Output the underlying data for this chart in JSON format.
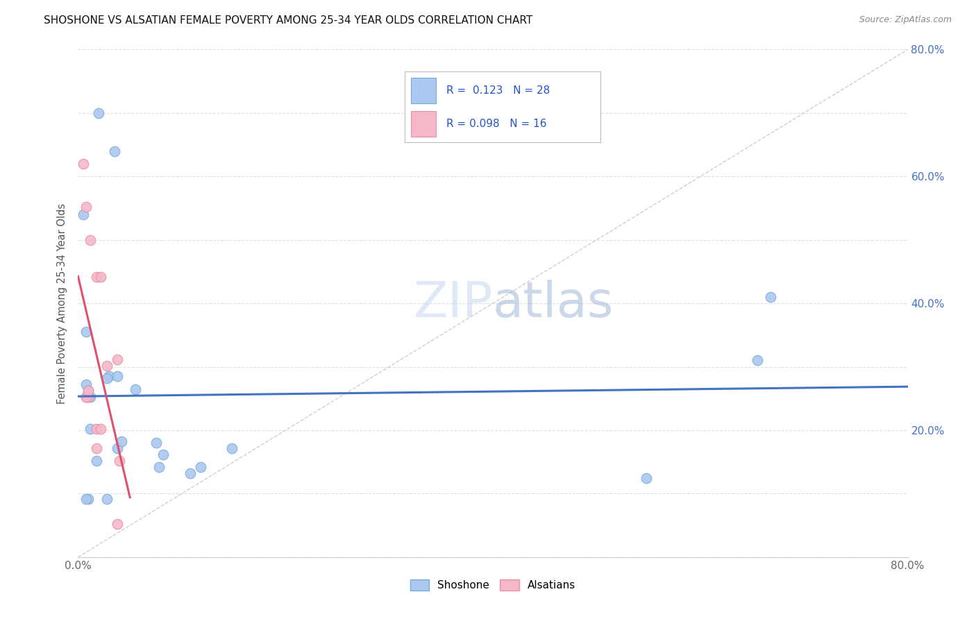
{
  "title": "SHOSHONE VS ALSATIAN FEMALE POVERTY AMONG 25-34 YEAR OLDS CORRELATION CHART",
  "source": "Source: ZipAtlas.com",
  "ylabel": "Female Poverty Among 25-34 Year Olds",
  "xlim": [
    0.0,
    0.8
  ],
  "ylim": [
    0.0,
    0.8
  ],
  "xticks": [
    0.0,
    0.1,
    0.2,
    0.3,
    0.4,
    0.5,
    0.6,
    0.7,
    0.8
  ],
  "yticks": [
    0.0,
    0.1,
    0.2,
    0.3,
    0.4,
    0.5,
    0.6,
    0.7,
    0.8
  ],
  "yticklabels_right": [
    "",
    "",
    "20.0%",
    "",
    "40.0%",
    "",
    "60.0%",
    "",
    "80.0%"
  ],
  "shoshone_x": [
    0.02,
    0.005,
    0.03,
    0.038,
    0.008,
    0.055,
    0.075,
    0.082,
    0.018,
    0.012,
    0.01,
    0.008,
    0.012,
    0.038,
    0.042,
    0.148,
    0.118,
    0.108,
    0.548,
    0.01,
    0.028,
    0.035,
    0.078,
    0.668,
    0.655,
    0.01,
    0.008,
    0.028
  ],
  "shoshone_y": [
    0.7,
    0.54,
    0.285,
    0.285,
    0.355,
    0.265,
    0.18,
    0.162,
    0.152,
    0.252,
    0.252,
    0.272,
    0.202,
    0.172,
    0.182,
    0.172,
    0.142,
    0.132,
    0.125,
    0.262,
    0.282,
    0.64,
    0.142,
    0.41,
    0.31,
    0.092,
    0.092,
    0.092
  ],
  "alsatian_x": [
    0.005,
    0.008,
    0.012,
    0.018,
    0.022,
    0.038,
    0.008,
    0.01,
    0.018,
    0.022,
    0.018,
    0.04,
    0.038,
    0.008,
    0.01,
    0.028
  ],
  "alsatian_y": [
    0.62,
    0.552,
    0.5,
    0.442,
    0.442,
    0.312,
    0.252,
    0.252,
    0.202,
    0.202,
    0.172,
    0.152,
    0.052,
    0.252,
    0.262,
    0.302
  ],
  "shoshone_color": "#aac8f0",
  "alsatian_color": "#f5b8c8",
  "shoshone_edge": "#7aacd4",
  "alsatian_edge": "#e890a8",
  "shoshone_R": 0.123,
  "shoshone_N": 28,
  "alsatian_R": 0.098,
  "alsatian_N": 16,
  "trend_color_shoshone": "#4472c4",
  "trend_color_alsatian": "#e05068",
  "diagonal_color": "#d8c8d8",
  "marker_size": 110,
  "background_color": "#ffffff",
  "grid_color": "#e0e0e0",
  "legend_R_color": "#2255cc",
  "legend_text_color_alsatian": "#cc4466"
}
